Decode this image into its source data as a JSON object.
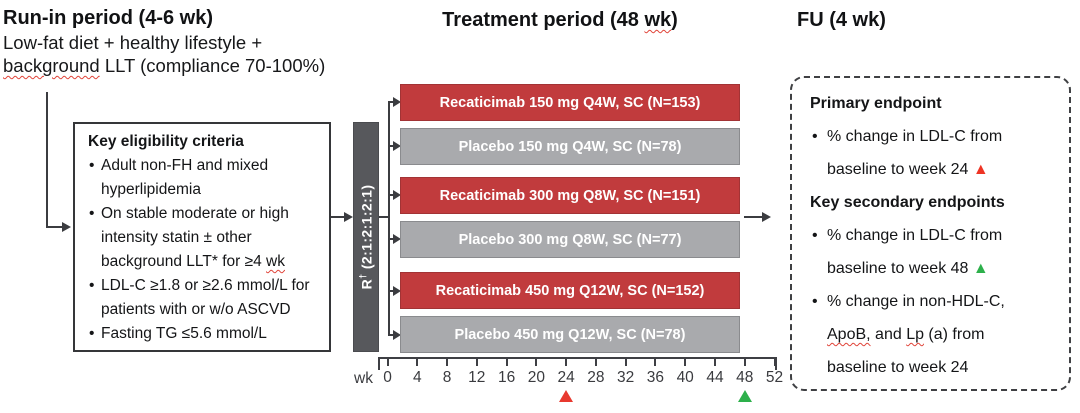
{
  "colors": {
    "recaticimab_bar": "#c13b3d",
    "placebo_bar": "#a9aaad",
    "randomization_bar": "#57585c",
    "week24_marker": "#e8392f",
    "week48_marker": "#2db04b"
  },
  "glyphs": {
    "bullet": "•",
    "triangle": "▲"
  },
  "run_in": {
    "title": "Run-in period (4-6 wk)",
    "line1": "Low-fat diet + healthy lifestyle +",
    "line2_wavy": "background",
    "line2_rest": " LLT (compliance 70-100%)"
  },
  "treatment": {
    "title_pre": "Treatment period (48 ",
    "title_wavy": "wk",
    "title_post": ")"
  },
  "follow_up": {
    "title": "FU (4 wk)"
  },
  "eligibility": {
    "title": "Key eligibility criteria",
    "bullets": [
      {
        "text": "Adult non-FH and mixed hyperlipidemia"
      },
      {
        "pre": "On stable moderate or high intensity statin ± other background LLT* for ≥4 ",
        "wavy": "wk"
      },
      {
        "text": "LDL-C ≥1.8 or ≥2.6 mmol/L for patients with or w/o ASCVD"
      },
      {
        "text": "Fasting TG ≤5.6 mmol/L"
      }
    ]
  },
  "randomization": {
    "r": "R",
    "dagger": "†",
    "ratio": " (2:1:2:1:2:1)"
  },
  "arms": [
    {
      "label": "Recaticimab 150 mg Q4W, SC (N=153)",
      "type": "recaticimab"
    },
    {
      "label": "Placebo 150 mg Q4W, SC (N=78)",
      "type": "placebo"
    },
    {
      "label": "Recaticimab 300 mg Q8W, SC (N=151)",
      "type": "recaticimab"
    },
    {
      "label": "Placebo 300 mg Q8W, SC (N=77)",
      "type": "placebo"
    },
    {
      "label": "Recaticimab 450 mg Q12W, SC (N=152)",
      "type": "recaticimab"
    },
    {
      "label": "Placebo 450 mg Q12W, SC (N=78)",
      "type": "placebo"
    }
  ],
  "axis": {
    "unit": "wk",
    "ticks": [
      "0",
      "4",
      "8",
      "12",
      "16",
      "20",
      "24",
      "28",
      "32",
      "36",
      "40",
      "44",
      "48",
      "52"
    ],
    "markers": [
      {
        "tick": "24",
        "color": "#e8392f"
      },
      {
        "tick": "48",
        "color": "#2db04b"
      }
    ]
  },
  "endpoints": {
    "primary_title": "Primary endpoint",
    "primary_text": "% change in LDL-C from baseline to week 24 ",
    "secondary_title": "Key secondary endpoints",
    "secondary1_text": "% change in LDL-C from baseline to week 48 ",
    "secondary2_seg1": "% change in non-HDL-C, ",
    "secondary2_wavy1": "ApoB,",
    "secondary2_seg2": " and ",
    "secondary2_wavy2": "Lp",
    "secondary2_seg3": " (a) from baseline to week 24"
  }
}
